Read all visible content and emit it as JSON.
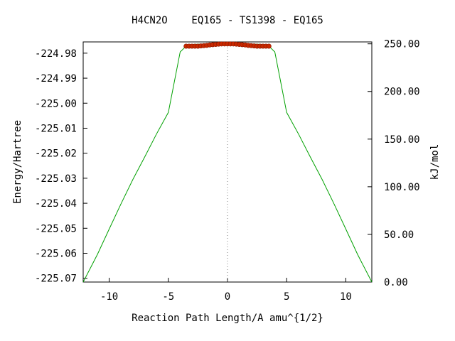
{
  "chart_data": {
    "type": "line",
    "title": "H4CN2O    EQ165 - TS1398 - EQ165",
    "xlabel": "Reaction Path Length/A amu^{1/2}",
    "ylabel": "Energy/Hartree",
    "y2label": "kJ/mol",
    "xlim": [
      -12.2,
      12.2
    ],
    "ylim": [
      -225.0715,
      -224.9755
    ],
    "y2lim": [
      0.0,
      252.0
    ],
    "xticks": [
      -10,
      -5,
      0,
      5,
      10
    ],
    "xtick_labels": [
      "-10",
      "-5",
      "0",
      "5",
      "10"
    ],
    "yticks": [
      -224.98,
      -224.99,
      -225.0,
      -225.01,
      -225.02,
      -225.03,
      -225.04,
      -225.05,
      -225.06,
      -225.07
    ],
    "ytick_labels": [
      "-224.98",
      "-224.99",
      "-225.00",
      "-225.01",
      "-225.02",
      "-225.03",
      "-225.04",
      "-225.05",
      "-225.06",
      "-225.07"
    ],
    "y2ticks": [
      0,
      50,
      100,
      150,
      200,
      250
    ],
    "y2tick_labels": [
      "0.00",
      "50.00",
      "100.00",
      "150.00",
      "200.00",
      "250.00"
    ],
    "reference_line_x": 0,
    "grid": false,
    "series": [
      {
        "color": "#00a000",
        "style": "line",
        "x": [
          -12.2,
          -11,
          -10,
          -9,
          -8,
          -7,
          -6,
          -5,
          -4,
          -3.5,
          -3,
          0,
          3,
          3.5,
          4,
          5,
          6,
          7,
          8,
          9,
          10,
          11,
          12.2
        ],
        "y": [
          -225.0715,
          -225.0605,
          -225.0503,
          -225.0402,
          -225.0305,
          -225.0215,
          -225.0123,
          -225.0037,
          -224.9795,
          -224.9772,
          -224.9765,
          -224.976,
          -224.9765,
          -224.9772,
          -224.9795,
          -225.0037,
          -225.0123,
          -225.0215,
          -225.0305,
          -225.0402,
          -225.0503,
          -225.0605,
          -225.0715
        ]
      },
      {
        "color": "#c82800",
        "style": "markers",
        "x": [
          -3.5,
          -3.25,
          -3,
          -2.75,
          -2.5,
          -2.25,
          -2,
          -1.75,
          -1.5,
          -1.25,
          -1,
          -0.75,
          -0.5,
          -0.25,
          0,
          0.25,
          0.5,
          0.75,
          1,
          1.25,
          1.5,
          1.75,
          2,
          2.25,
          2.5,
          2.75,
          3,
          3.25,
          3.5
        ],
        "y": [
          -224.9772,
          -224.9772,
          -224.9772,
          -224.9772,
          -224.9772,
          -224.9771,
          -224.977,
          -224.9769,
          -224.9767,
          -224.9766,
          -224.9765,
          -224.9764,
          -224.9763,
          -224.9763,
          -224.9763,
          -224.9763,
          -224.9763,
          -224.9764,
          -224.9765,
          -224.9766,
          -224.9767,
          -224.9769,
          -224.977,
          -224.9771,
          -224.9772,
          -224.9772,
          -224.9772,
          -224.9772,
          -224.9772
        ]
      }
    ]
  }
}
